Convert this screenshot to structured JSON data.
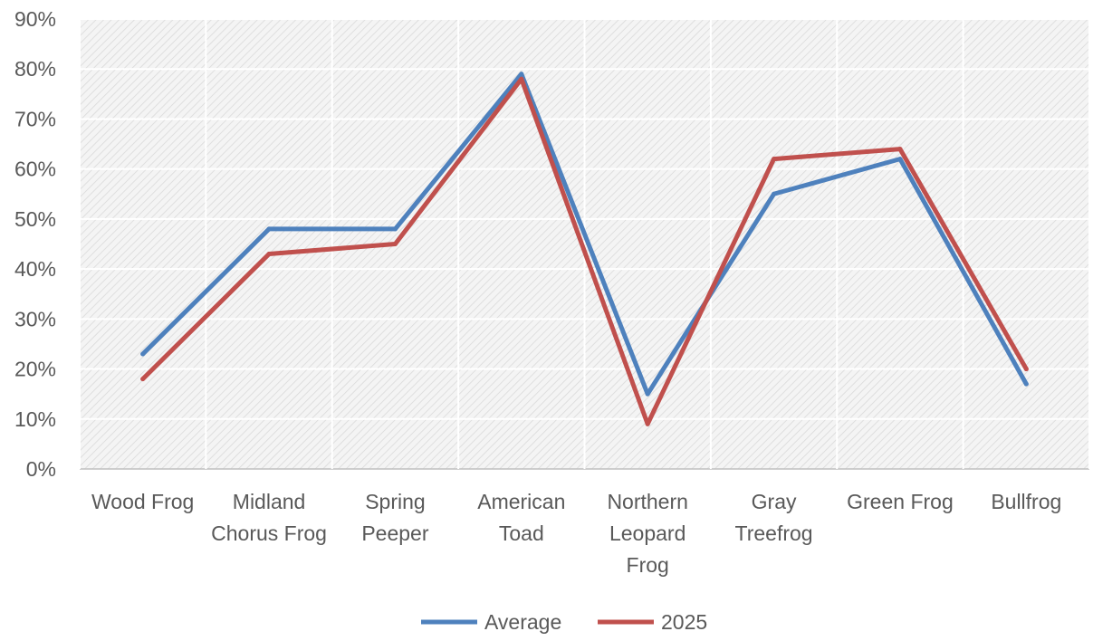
{
  "chart_data": {
    "type": "line",
    "categories": [
      [
        "Wood Frog"
      ],
      [
        "Midland",
        "Chorus Frog"
      ],
      [
        "Spring",
        "Peeper"
      ],
      [
        "American",
        "Toad"
      ],
      [
        "Northern",
        "Leopard",
        "Frog"
      ],
      [
        "Gray",
        "Treefrog"
      ],
      [
        "Green Frog"
      ],
      [
        "Bullfrog"
      ]
    ],
    "series": [
      {
        "name": "Average",
        "color": "#4e81bd",
        "values": [
          23,
          48,
          48,
          79,
          15,
          55,
          62,
          17
        ]
      },
      {
        "name": "2025",
        "color": "#c0504d",
        "values": [
          18,
          43,
          45,
          78,
          9,
          62,
          64,
          20
        ]
      }
    ],
    "y_ticks": [
      "0%",
      "10%",
      "20%",
      "30%",
      "40%",
      "50%",
      "60%",
      "70%",
      "80%",
      "90%"
    ],
    "ylim": [
      0,
      90
    ],
    "grid": true,
    "plot_background": "hatched light gray",
    "legend_position": "bottom"
  }
}
